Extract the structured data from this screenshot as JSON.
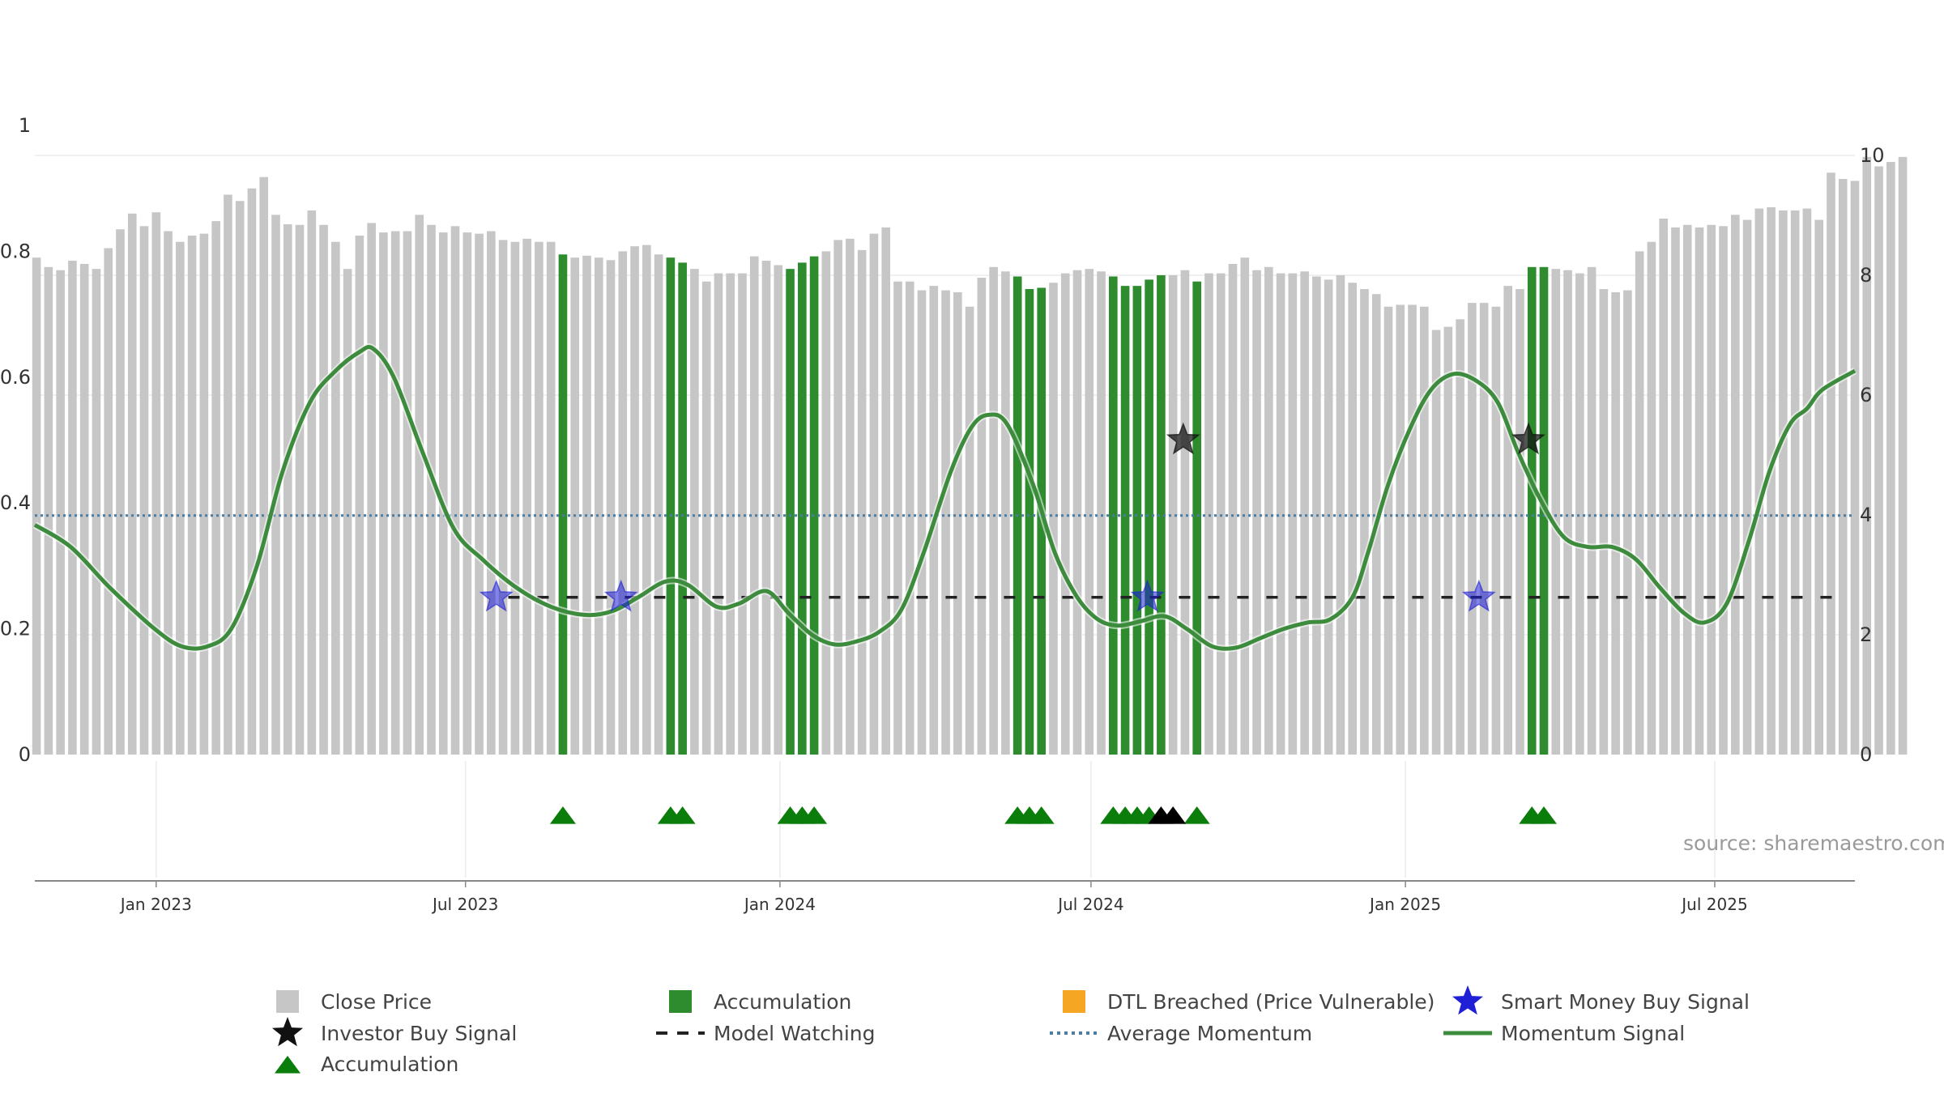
{
  "chart_data": {
    "type": "bar",
    "source": "source: sharemaestro.com",
    "left_axis": {
      "ylim": [
        0,
        1
      ],
      "ticks": [
        "0",
        "0.2",
        "0.4",
        "0.6",
        "0.8",
        "1"
      ]
    },
    "right_axis": {
      "ylim": [
        0,
        10.5
      ],
      "ticks": [
        "0",
        "2",
        "4",
        "6",
        "8",
        "10"
      ]
    },
    "x_axis": {
      "start": "2022-10-22",
      "end": "2025-09-21",
      "ticks": [
        {
          "date": "2023-01-01",
          "label": "Jan 2023"
        },
        {
          "date": "2023-07-01",
          "label": "Jul 2023"
        },
        {
          "date": "2024-01-01",
          "label": "Jan 2024"
        },
        {
          "date": "2024-07-01",
          "label": "Jul 2024"
        },
        {
          "date": "2025-01-01",
          "label": "Jan 2025"
        },
        {
          "date": "2025-07-01",
          "label": "Jul 2025"
        }
      ]
    },
    "bar_start": "2022-10-23",
    "bar_step_days": 7,
    "close_price": [
      0.79,
      0.775,
      0.77,
      0.785,
      0.78,
      0.772,
      0.805,
      0.835,
      0.86,
      0.84,
      0.862,
      0.832,
      0.815,
      0.825,
      0.828,
      0.848,
      0.89,
      0.88,
      0.9,
      0.918,
      0.858,
      0.843,
      0.842,
      0.865,
      0.842,
      0.815,
      0.772,
      0.825,
      0.845,
      0.83,
      0.832,
      0.832,
      0.858,
      0.842,
      0.83,
      0.84,
      0.83,
      0.828,
      0.832,
      0.818,
      0.815,
      0.82,
      0.815,
      0.815,
      0.795,
      0.79,
      0.793,
      0.79,
      0.786,
      0.8,
      0.808,
      0.81,
      0.795,
      0.79,
      0.782,
      0.772,
      0.752,
      0.765,
      0.765,
      0.765,
      0.792,
      0.785,
      0.778,
      0.772,
      0.782,
      0.792,
      0.8,
      0.818,
      0.82,
      0.802,
      0.828,
      0.838,
      0.752,
      0.752,
      0.738,
      0.745,
      0.738,
      0.735,
      0.712,
      0.758,
      0.775,
      0.768,
      0.76,
      0.74,
      0.742,
      0.75,
      0.765,
      0.77,
      0.772,
      0.768,
      0.76,
      0.745,
      0.745,
      0.755,
      0.762,
      0.762,
      0.77,
      0.752,
      0.765,
      0.765,
      0.78,
      0.79,
      0.77,
      0.775,
      0.765,
      0.765,
      0.768,
      0.76,
      0.755,
      0.762,
      0.75,
      0.74,
      0.732,
      0.712,
      0.715,
      0.715,
      0.712,
      0.675,
      0.68,
      0.692,
      0.718,
      0.718,
      0.712,
      0.745,
      0.74,
      0.775,
      0.775,
      0.772,
      0.77,
      0.765,
      0.775,
      0.74,
      0.735,
      0.738,
      0.8,
      0.815,
      0.852,
      0.838,
      0.842,
      0.838,
      0.842,
      0.84,
      0.858,
      0.85,
      0.868,
      0.87,
      0.865,
      0.865,
      0.868,
      0.85,
      0.925,
      0.915,
      0.912,
      0.95,
      0.935,
      0.942,
      0.95
    ],
    "accumulation_bars": [
      44,
      53,
      54,
      63,
      64,
      65,
      82,
      83,
      84,
      90,
      91,
      92,
      93,
      94,
      97,
      125,
      126
    ],
    "accumulation_markers_green": [
      44,
      53,
      54,
      63,
      64,
      65,
      82,
      83,
      84,
      90,
      91,
      92,
      93,
      97,
      125,
      126
    ],
    "accumulation_markers_black": [
      94,
      95
    ],
    "momentum": [
      [
        "2022-10-22",
        0.365
      ],
      [
        "2022-11-12",
        0.33
      ],
      [
        "2022-12-05",
        0.265
      ],
      [
        "2022-12-31",
        0.2
      ],
      [
        "2023-01-16",
        0.172
      ],
      [
        "2023-01-31",
        0.172
      ],
      [
        "2023-02-14",
        0.2
      ],
      [
        "2023-03-01",
        0.3
      ],
      [
        "2023-03-16",
        0.45
      ],
      [
        "2023-04-01",
        0.56
      ],
      [
        "2023-04-16",
        0.61
      ],
      [
        "2023-04-30",
        0.64
      ],
      [
        "2023-05-08",
        0.645
      ],
      [
        "2023-05-20",
        0.6
      ],
      [
        "2023-06-06",
        0.48
      ],
      [
        "2023-06-24",
        0.36
      ],
      [
        "2023-07-11",
        0.31
      ],
      [
        "2023-07-31",
        0.265
      ],
      [
        "2023-08-20",
        0.235
      ],
      [
        "2023-09-09",
        0.222
      ],
      [
        "2023-09-25",
        0.228
      ],
      [
        "2023-10-10",
        0.25
      ],
      [
        "2023-10-26",
        0.275
      ],
      [
        "2023-11-08",
        0.27
      ],
      [
        "2023-11-25",
        0.235
      ],
      [
        "2023-12-08",
        0.24
      ],
      [
        "2023-12-24",
        0.26
      ],
      [
        "2024-01-06",
        0.225
      ],
      [
        "2024-01-20",
        0.19
      ],
      [
        "2024-02-02",
        0.175
      ],
      [
        "2024-02-15",
        0.18
      ],
      [
        "2024-02-28",
        0.195
      ],
      [
        "2024-03-12",
        0.23
      ],
      [
        "2024-03-25",
        0.32
      ],
      [
        "2024-04-10",
        0.45
      ],
      [
        "2024-04-22",
        0.52
      ],
      [
        "2024-05-02",
        0.54
      ],
      [
        "2024-05-13",
        0.525
      ],
      [
        "2024-05-28",
        0.43
      ],
      [
        "2024-06-10",
        0.32
      ],
      [
        "2024-06-23",
        0.25
      ],
      [
        "2024-07-05",
        0.215
      ],
      [
        "2024-07-17",
        0.205
      ],
      [
        "2024-07-30",
        0.212
      ],
      [
        "2024-08-13",
        0.22
      ],
      [
        "2024-08-26",
        0.2
      ],
      [
        "2024-09-10",
        0.172
      ],
      [
        "2024-09-24",
        0.17
      ],
      [
        "2024-10-08",
        0.185
      ],
      [
        "2024-10-22",
        0.2
      ],
      [
        "2024-11-05",
        0.21
      ],
      [
        "2024-11-18",
        0.215
      ],
      [
        "2024-12-01",
        0.25
      ],
      [
        "2024-12-10",
        0.32
      ],
      [
        "2024-12-22",
        0.43
      ],
      [
        "2025-01-04",
        0.52
      ],
      [
        "2025-01-16",
        0.58
      ],
      [
        "2025-01-29",
        0.605
      ],
      [
        "2025-02-11",
        0.595
      ],
      [
        "2025-02-24",
        0.56
      ],
      [
        "2025-03-08",
        0.48
      ],
      [
        "2025-03-22",
        0.4
      ],
      [
        "2025-04-04",
        0.345
      ],
      [
        "2025-04-18",
        0.33
      ],
      [
        "2025-05-02",
        0.33
      ],
      [
        "2025-05-16",
        0.31
      ],
      [
        "2025-05-30",
        0.265
      ],
      [
        "2025-06-13",
        0.225
      ],
      [
        "2025-06-25",
        0.21
      ],
      [
        "2025-07-08",
        0.24
      ],
      [
        "2025-07-21",
        0.34
      ],
      [
        "2025-08-02",
        0.45
      ],
      [
        "2025-08-14",
        0.525
      ],
      [
        "2025-08-24",
        0.55
      ],
      [
        "2025-09-02",
        0.58
      ],
      [
        "2025-09-21",
        0.61
      ]
    ],
    "momentum_dates_rescale": {
      "source_end": "2025-09-21",
      "display": [
        [
          "2022-10-22",
          0.365
        ],
        [
          "2022-11-12",
          0.33
        ],
        [
          "2022-12-05",
          0.265
        ],
        [
          "2022-12-31",
          0.2
        ],
        [
          "2023-01-16",
          0.172
        ],
        [
          "2023-01-31",
          0.172
        ],
        [
          "2023-02-14",
          0.2
        ],
        [
          "2023-03-01",
          0.3
        ],
        [
          "2023-03-16",
          0.45
        ],
        [
          "2023-04-01",
          0.56
        ],
        [
          "2023-04-16",
          0.61
        ],
        [
          "2023-04-30",
          0.64
        ],
        [
          "2023-05-08",
          0.645
        ],
        [
          "2023-05-20",
          0.6
        ],
        [
          "2023-06-06",
          0.48
        ],
        [
          "2023-06-24",
          0.36
        ],
        [
          "2023-07-11",
          0.31
        ],
        [
          "2023-07-31",
          0.265
        ],
        [
          "2023-08-20",
          0.235
        ],
        [
          "2023-09-09",
          0.222
        ],
        [
          "2023-09-25",
          0.228
        ],
        [
          "2023-10-10",
          0.25
        ],
        [
          "2023-10-26",
          0.275
        ],
        [
          "2023-11-08",
          0.27
        ],
        [
          "2023-11-25",
          0.235
        ],
        [
          "2023-12-08",
          0.24
        ],
        [
          "2023-12-24",
          0.26
        ],
        [
          "2024-01-06",
          0.225
        ],
        [
          "2024-01-20",
          0.19
        ],
        [
          "2024-02-02",
          0.175
        ],
        [
          "2024-02-15",
          0.18
        ],
        [
          "2024-02-28",
          0.195
        ],
        [
          "2024-03-12",
          0.23
        ],
        [
          "2024-03-25",
          0.32
        ],
        [
          "2024-04-10",
          0.45
        ],
        [
          "2024-04-22",
          0.52
        ],
        [
          "2024-05-02",
          0.54
        ],
        [
          "2024-05-13",
          0.525
        ],
        [
          "2024-05-28",
          0.43
        ],
        [
          "2024-06-10",
          0.32
        ],
        [
          "2024-06-23",
          0.25
        ],
        [
          "2024-07-05",
          0.215
        ],
        [
          "2024-07-17",
          0.205
        ],
        [
          "2024-07-30",
          0.212
        ],
        [
          "2024-08-13",
          0.22
        ],
        [
          "2024-08-26",
          0.2
        ],
        [
          "2024-09-10",
          0.172
        ],
        [
          "2024-09-24",
          0.17
        ],
        [
          "2024-10-08",
          0.185
        ],
        [
          "2024-10-22",
          0.2
        ],
        [
          "2024-11-05",
          0.21
        ],
        [
          "2024-11-18",
          0.215
        ],
        [
          "2024-12-01",
          0.25
        ],
        [
          "2024-12-10",
          0.32
        ],
        [
          "2024-12-22",
          0.43
        ],
        [
          "2025-01-04",
          0.52
        ],
        [
          "2025-01-16",
          0.58
        ],
        [
          "2025-01-29",
          0.605
        ],
        [
          "2025-02-11",
          0.595
        ],
        [
          "2025-02-24",
          0.56
        ],
        [
          "2025-03-08",
          0.48
        ],
        [
          "2025-03-22",
          0.4
        ],
        [
          "2025-04-04",
          0.345
        ],
        [
          "2025-04-18",
          0.33
        ],
        [
          "2025-05-02",
          0.33
        ],
        [
          "2025-05-16",
          0.31
        ],
        [
          "2025-05-30",
          0.265
        ],
        [
          "2025-06-13",
          0.225
        ],
        [
          "2025-06-25",
          0.21
        ],
        [
          "2025-07-08",
          0.24
        ],
        [
          "2025-07-21",
          0.34
        ],
        [
          "2025-08-02",
          0.45
        ],
        [
          "2025-08-14",
          0.525
        ],
        [
          "2025-08-24",
          0.55
        ],
        [
          "2025-09-02",
          0.58
        ],
        [
          "2025-09-21",
          0.61
        ]
      ]
    },
    "momentum_line": [
      [
        "2022-10-22",
        0.365
      ],
      [
        "2022-11-12",
        0.33
      ],
      [
        "2022-12-05",
        0.265
      ],
      [
        "2022-12-31",
        0.2
      ],
      [
        "2023-01-16",
        0.172
      ],
      [
        "2023-01-31",
        0.172
      ],
      [
        "2023-02-14",
        0.2
      ],
      [
        "2023-03-01",
        0.3
      ],
      [
        "2023-03-16",
        0.45
      ],
      [
        "2023-04-01",
        0.56
      ],
      [
        "2023-04-16",
        0.61
      ],
      [
        "2023-04-30",
        0.64
      ],
      [
        "2023-05-08",
        0.645
      ],
      [
        "2023-05-20",
        0.6
      ],
      [
        "2023-06-06",
        0.48
      ],
      [
        "2023-06-24",
        0.36
      ],
      [
        "2023-07-11",
        0.31
      ],
      [
        "2023-07-31",
        0.265
      ],
      [
        "2023-08-20",
        0.235
      ],
      [
        "2023-09-09",
        0.222
      ],
      [
        "2023-09-25",
        0.228
      ],
      [
        "2023-10-10",
        0.25
      ],
      [
        "2023-10-26",
        0.275
      ],
      [
        "2023-11-08",
        0.27
      ],
      [
        "2023-11-25",
        0.235
      ],
      [
        "2023-12-08",
        0.24
      ],
      [
        "2023-12-24",
        0.26
      ],
      [
        "2024-01-06",
        0.225
      ],
      [
        "2024-01-20",
        0.19
      ],
      [
        "2024-02-02",
        0.175
      ],
      [
        "2024-02-15",
        0.18
      ],
      [
        "2024-02-28",
        0.195
      ],
      [
        "2024-03-12",
        0.23
      ],
      [
        "2024-03-25",
        0.32
      ],
      [
        "2024-04-10",
        0.45
      ],
      [
        "2024-04-22",
        0.52
      ],
      [
        "2024-05-02",
        0.54
      ],
      [
        "2024-05-13",
        0.525
      ],
      [
        "2024-05-28",
        0.43
      ],
      [
        "2024-06-10",
        0.32
      ],
      [
        "2024-06-23",
        0.25
      ],
      [
        "2024-07-05",
        0.215
      ],
      [
        "2024-07-17",
        0.205
      ],
      [
        "2024-07-30",
        0.212
      ],
      [
        "2024-08-13",
        0.22
      ],
      [
        "2024-08-26",
        0.2
      ],
      [
        "2024-09-10",
        0.172
      ],
      [
        "2024-09-24",
        0.17
      ],
      [
        "2024-10-08",
        0.185
      ],
      [
        "2024-10-22",
        0.2
      ],
      [
        "2024-11-05",
        0.21
      ],
      [
        "2024-11-18",
        0.215
      ],
      [
        "2024-12-01",
        0.25
      ],
      [
        "2024-12-10",
        0.32
      ],
      [
        "2024-12-22",
        0.43
      ],
      [
        "2025-01-04",
        0.52
      ],
      [
        "2025-01-16",
        0.58
      ],
      [
        "2025-01-29",
        0.605
      ],
      [
        "2025-02-11",
        0.595
      ],
      [
        "2025-02-24",
        0.56
      ],
      [
        "2025-03-08",
        0.48
      ],
      [
        "2025-03-22",
        0.4
      ],
      [
        "2025-04-04",
        0.345
      ],
      [
        "2025-04-18",
        0.33
      ],
      [
        "2025-05-02",
        0.33
      ],
      [
        "2025-05-16",
        0.31
      ],
      [
        "2025-05-30",
        0.265
      ],
      [
        "2025-06-13",
        0.225
      ],
      [
        "2025-06-25",
        0.21
      ],
      [
        "2025-07-08",
        0.24
      ],
      [
        "2025-07-21",
        0.34
      ],
      [
        "2025-08-02",
        0.45
      ],
      [
        "2025-08-14",
        0.525
      ],
      [
        "2025-08-24",
        0.55
      ],
      [
        "2025-09-02",
        0.58
      ],
      [
        "2025-09-21",
        0.61
      ]
    ],
    "average_momentum": 0.38,
    "model_watching": {
      "start": "2023-07-26",
      "end": "2025-09-14",
      "value": 0.25
    },
    "smart_money_buy_signals": [
      {
        "date": "2023-07-19",
        "value": 0.25
      },
      {
        "date": "2023-09-30",
        "value": 0.25
      },
      {
        "date": "2024-08-03",
        "value": 0.25
      },
      {
        "date": "2025-02-13",
        "value": 0.25
      }
    ],
    "investor_buy_signals": [
      {
        "date": "2024-08-24",
        "value": 0.5
      },
      {
        "date": "2025-03-14",
        "value": 0.5
      }
    ],
    "colors": {
      "close_price": "#c6c6c6",
      "accumulation": "#2e8b2e",
      "dtl_breached": "#f5a623",
      "momentum": "#3d8c3d",
      "average_momentum": "#4a7da3",
      "model_watching": "#222222",
      "smart_money": "#1f1fd6",
      "investor": "#111111",
      "marker_green": "#0a7d0a"
    },
    "legend": {
      "position": "bottom",
      "items": [
        {
          "key": "close_price",
          "label": "Close Price",
          "icon": "square"
        },
        {
          "key": "accumulation_bar",
          "label": "Accumulation",
          "icon": "square"
        },
        {
          "key": "dtl_breached",
          "label": "DTL Breached (Price Vulnerable)",
          "icon": "square"
        },
        {
          "key": "smart_money",
          "label": "Smart Money Buy Signal",
          "icon": "star"
        },
        {
          "key": "investor",
          "label": "Investor Buy Signal",
          "icon": "star"
        },
        {
          "key": "model_watching",
          "label": "Model Watching",
          "icon": "dashed-line"
        },
        {
          "key": "average_momentum",
          "label": "Average Momentum",
          "icon": "dotted-line"
        },
        {
          "key": "momentum",
          "label": "Momentum Signal",
          "icon": "solid-line"
        },
        {
          "key": "accumulation_marker",
          "label": "Accumulation",
          "icon": "triangle"
        }
      ]
    }
  }
}
